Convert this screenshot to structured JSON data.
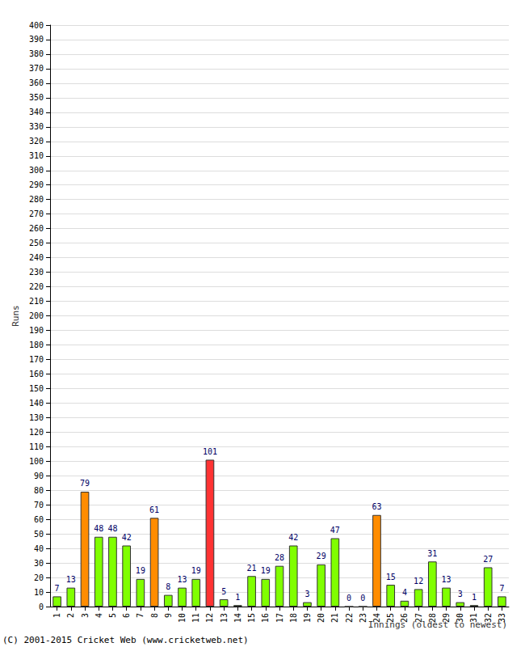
{
  "chart_data": {
    "type": "bar",
    "xlabel": "Innings (oldest to newest)",
    "ylabel": "Runs",
    "annotations": [
      "(C) 2001-2015 Cricket Web (www.cricketweb.net)"
    ],
    "categories": [
      "1",
      "2",
      "3",
      "4",
      "5",
      "6",
      "7",
      "8",
      "9",
      "10",
      "11",
      "12",
      "13",
      "14",
      "15",
      "16",
      "17",
      "18",
      "19",
      "20",
      "21",
      "22",
      "23",
      "24",
      "25",
      "26",
      "27",
      "28",
      "29",
      "30",
      "31",
      "32",
      "33"
    ],
    "values": [
      7,
      13,
      79,
      48,
      48,
      42,
      19,
      61,
      8,
      13,
      19,
      101,
      5,
      1,
      21,
      19,
      28,
      42,
      3,
      29,
      47,
      0,
      0,
      63,
      15,
      4,
      12,
      31,
      13,
      3,
      1,
      27,
      7
    ],
    "colors": [
      "#80ff00",
      "#80ff00",
      "#ff8c00",
      "#80ff00",
      "#80ff00",
      "#80ff00",
      "#80ff00",
      "#ff8c00",
      "#80ff00",
      "#80ff00",
      "#80ff00",
      "#ff3333",
      "#80ff00",
      "#80ff00",
      "#80ff00",
      "#80ff00",
      "#80ff00",
      "#80ff00",
      "#80ff00",
      "#80ff00",
      "#80ff00",
      "#80ff00",
      "#80ff00",
      "#ff8c00",
      "#80ff00",
      "#80ff00",
      "#80ff00",
      "#80ff00",
      "#80ff00",
      "#80ff00",
      "#80ff00",
      "#80ff00",
      "#80ff00"
    ],
    "ylim": [
      0,
      400
    ],
    "yticks": [
      0,
      10,
      20,
      30,
      40,
      50,
      60,
      70,
      80,
      90,
      100,
      110,
      120,
      130,
      140,
      150,
      160,
      170,
      180,
      190,
      200,
      210,
      220,
      230,
      240,
      250,
      260,
      270,
      280,
      290,
      300,
      310,
      320,
      330,
      340,
      350,
      360,
      370,
      380,
      390,
      400
    ],
    "grid": true,
    "data_labels": true
  }
}
